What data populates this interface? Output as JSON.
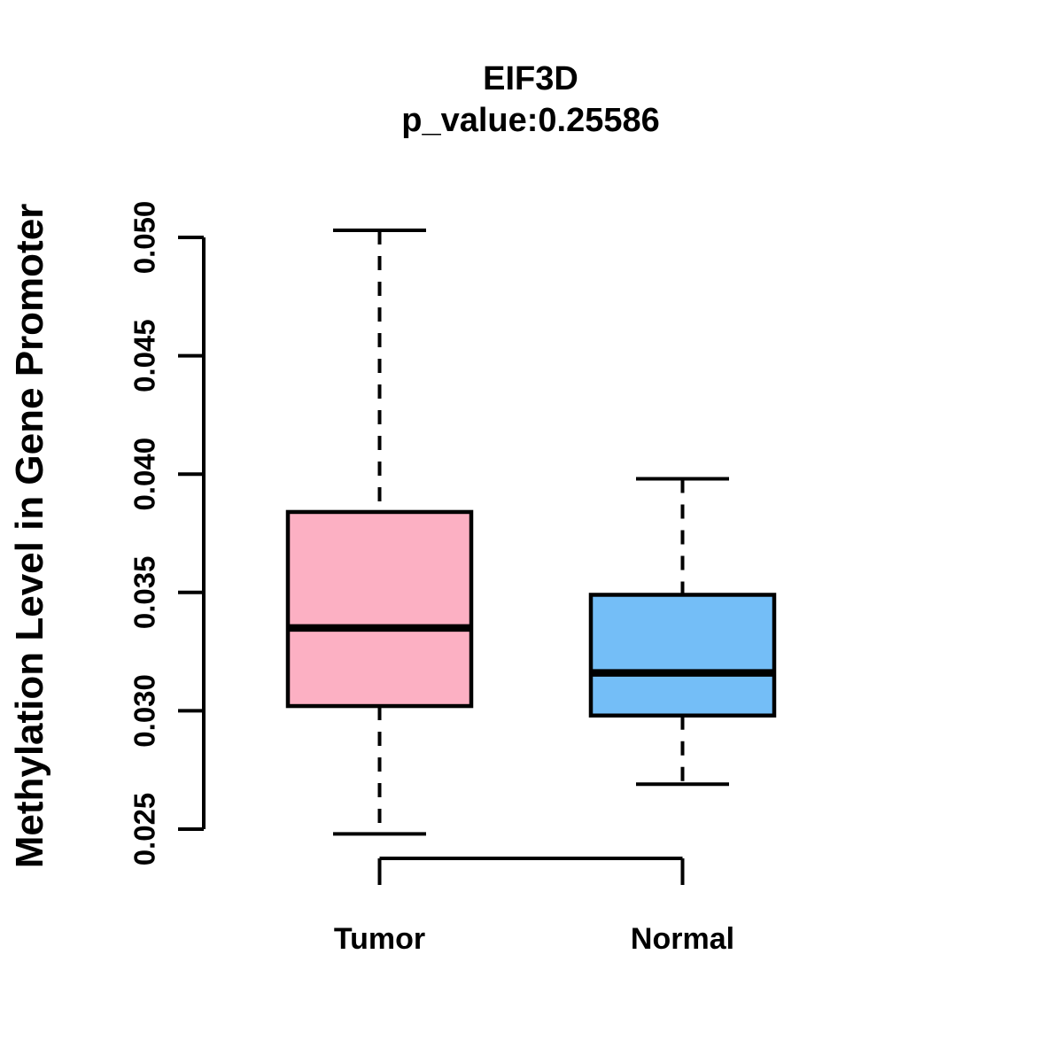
{
  "chart_data": {
    "type": "boxplot",
    "title": "EIF3D",
    "subtitle": "p_value:0.25586",
    "ylabel": "Methylation Level in Gene Promoter",
    "xlabel": "",
    "categories": [
      "Tumor",
      "Normal"
    ],
    "yticks": [
      "0.025",
      "0.030",
      "0.035",
      "0.040",
      "0.045",
      "0.050"
    ],
    "ylim": [
      0.025,
      0.05
    ],
    "grid": false,
    "legend": "none",
    "series": [
      {
        "name": "Tumor",
        "whisker_low": 0.0248,
        "q1": 0.0302,
        "median": 0.0335,
        "q3": 0.0384,
        "whisker_high": 0.0503,
        "outliers": [],
        "fill": "#FCB0C3"
      },
      {
        "name": "Normal",
        "whisker_low": 0.0269,
        "q1": 0.0298,
        "median": 0.0316,
        "q3": 0.0349,
        "whisker_high": 0.0398,
        "outliers": [],
        "fill": "#74BEF7"
      }
    ],
    "colors": {
      "line": "#000000",
      "text": "#000000",
      "background": "#FFFFFF",
      "tumor_fill": "#FCB0C3",
      "normal_fill": "#74BEF7"
    }
  }
}
